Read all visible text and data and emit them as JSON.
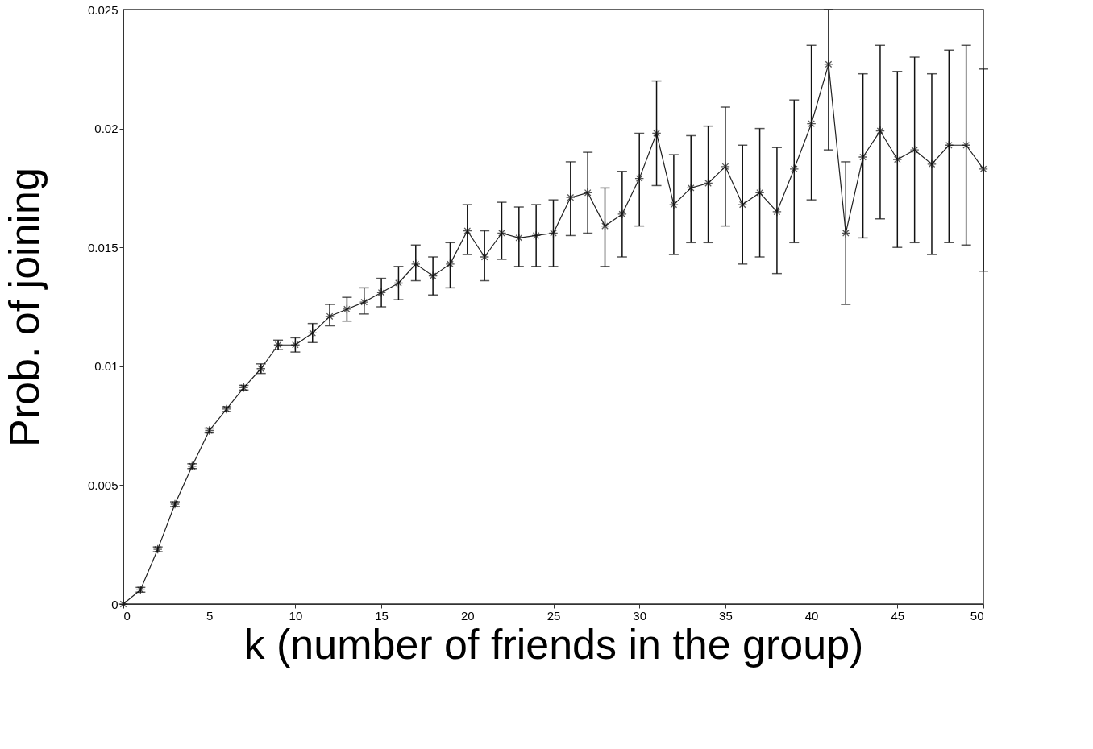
{
  "chart_data": {
    "type": "line",
    "xlabel": "k (number of friends in the group)",
    "ylabel": "Prob. of joining",
    "x": [
      0,
      1,
      2,
      3,
      4,
      5,
      6,
      7,
      8,
      9,
      10,
      11,
      12,
      13,
      14,
      15,
      16,
      17,
      18,
      19,
      20,
      21,
      22,
      23,
      24,
      25,
      26,
      27,
      28,
      29,
      30,
      31,
      32,
      33,
      34,
      35,
      36,
      37,
      38,
      39,
      40,
      41,
      42,
      43,
      44,
      45,
      46,
      47,
      48,
      49,
      50
    ],
    "series": [
      {
        "color": "#222222",
        "values": [
          0,
          0.0006,
          0.0023,
          0.0042,
          0.0058,
          0.0073,
          0.0082,
          0.0091,
          0.0099,
          0.0109,
          0.0109,
          0.0114,
          0.0121,
          0.0124,
          0.0127,
          0.0131,
          0.0135,
          0.0143,
          0.0138,
          0.0143,
          0.0157,
          0.0146,
          0.0156,
          0.0154,
          0.0155,
          0.0156,
          0.0171,
          0.0173,
          0.0159,
          0.0164,
          0.0179,
          0.0198,
          0.0168,
          0.0175,
          0.0177,
          0.0184,
          0.0168,
          0.0173,
          0.0165,
          0.0183,
          0.0202,
          0.0227,
          0.0156,
          0.0188,
          0.0199,
          0.0187,
          0.0191,
          0.0185,
          0.0193,
          0.0193,
          0.0183
        ],
        "errors": [
          null,
          0.0001,
          0.0001,
          0.0001,
          0.0001,
          0.0001,
          0.0001,
          0.0001,
          0.0002,
          [
            0.0107,
            0.0111
          ],
          [
            0.0106,
            0.0112
          ],
          [
            0.011,
            0.0118
          ],
          [
            0.0117,
            0.0126
          ],
          [
            0.0119,
            0.0129
          ],
          [
            0.0122,
            0.0133
          ],
          [
            0.0125,
            0.0137
          ],
          [
            0.0128,
            0.0142
          ],
          [
            0.0136,
            0.0151
          ],
          [
            0.013,
            0.0146
          ],
          [
            0.0133,
            0.0152
          ],
          [
            0.0147,
            0.0168
          ],
          [
            0.0136,
            0.0157
          ],
          [
            0.0145,
            0.0169
          ],
          [
            0.0142,
            0.0167
          ],
          [
            0.0142,
            0.0168
          ],
          [
            0.0142,
            0.017
          ],
          [
            0.0155,
            0.0186
          ],
          [
            0.0156,
            0.019
          ],
          [
            0.0142,
            0.0175
          ],
          [
            0.0146,
            0.0182
          ],
          [
            0.0159,
            0.0198
          ],
          [
            0.0176,
            0.022
          ],
          [
            0.0147,
            0.0189
          ],
          [
            0.0152,
            0.0197
          ],
          [
            0.0152,
            0.0201
          ],
          [
            0.0159,
            0.0209
          ],
          [
            0.0143,
            0.0193
          ],
          [
            0.0146,
            0.02
          ],
          [
            0.0139,
            0.0192
          ],
          [
            0.0152,
            0.0212
          ],
          [
            0.017,
            0.0235
          ],
          [
            0.0191,
            0.025
          ],
          [
            0.0126,
            0.0186
          ],
          [
            0.0154,
            0.0223
          ],
          [
            0.0162,
            0.0235
          ],
          [
            0.015,
            0.0224
          ],
          [
            0.0152,
            0.023
          ],
          [
            0.0147,
            0.0223
          ],
          [
            0.0152,
            0.0233
          ],
          [
            0.0151,
            0.0235
          ],
          [
            0.014,
            0.0225
          ]
        ]
      }
    ],
    "xlim": [
      0,
      50
    ],
    "xticks": [
      0,
      5,
      10,
      15,
      20,
      25,
      30,
      35,
      40,
      45,
      50
    ],
    "ylim": [
      0,
      0.025
    ],
    "yticks": [
      0,
      0.005,
      0.01,
      0.015,
      0.02,
      0.025
    ],
    "grid": false,
    "marker": "cross",
    "line_style": "solid"
  }
}
